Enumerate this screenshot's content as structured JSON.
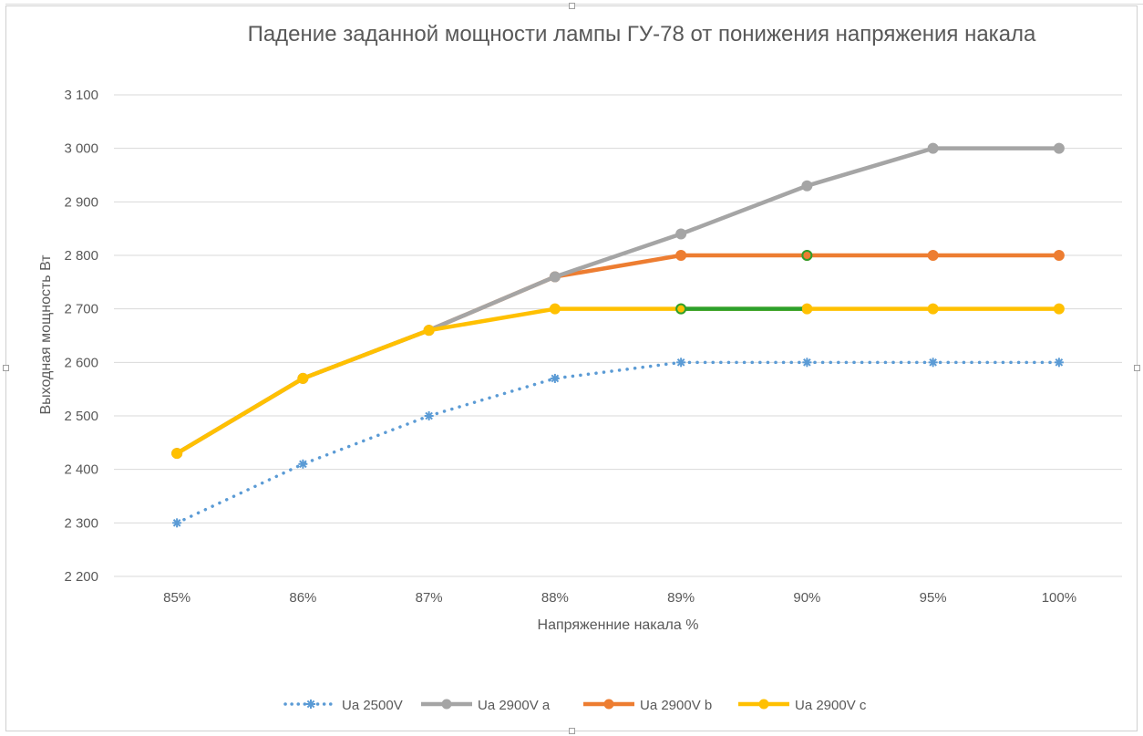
{
  "chart_data": {
    "type": "line",
    "title": "Падение заданной мощности лампы ГУ-78 от понижения напряжения накала",
    "xlabel": "Напряженние накала %",
    "ylabel": "Выходная мощность Вт",
    "categories": [
      "85%",
      "86%",
      "87%",
      "88%",
      "89%",
      "90%",
      "95%",
      "100%"
    ],
    "ylim": [
      2200,
      3100
    ],
    "yticks": [
      2200,
      2300,
      2400,
      2500,
      2600,
      2700,
      2800,
      2900,
      3000,
      3100
    ],
    "ytick_labels": [
      "2 200",
      "2 300",
      "2 400",
      "2 500",
      "2 600",
      "2 700",
      "2 800",
      "2 900",
      "3 000",
      "3 100"
    ],
    "grid": true,
    "legend_position": "bottom",
    "series": [
      {
        "name": "Ua 2500V",
        "color": "#5b9bd5",
        "style": "dotted",
        "marker": "star",
        "values": [
          2300,
          2410,
          2500,
          2570,
          2600,
          2600,
          2600,
          2600
        ]
      },
      {
        "name": "Ua 2900V a",
        "color": "#a5a5a5",
        "style": "solid",
        "marker": "circle",
        "values": [
          2430,
          2570,
          2660,
          2760,
          2840,
          2930,
          3000,
          3000
        ]
      },
      {
        "name": "Ua 2900V b",
        "color": "#ed7d31",
        "style": "solid",
        "marker": "circle",
        "values": [
          2430,
          2570,
          2660,
          2760,
          2800,
          2800,
          2800,
          2800
        ]
      },
      {
        "name": "Ua 2900V c",
        "color": "#ffc000",
        "style": "solid",
        "marker": "circle",
        "values": [
          2430,
          2570,
          2660,
          2700,
          2700,
          2700,
          2700,
          2700
        ]
      }
    ],
    "highlights": {
      "color": "#2ca02c",
      "segment": {
        "series": "Ua 2900V c",
        "from": "89%",
        "to": "90%",
        "value": 2700
      },
      "points": [
        {
          "series": "Ua 2900V c",
          "category": "89%",
          "value": 2700
        },
        {
          "series": "Ua 2900V b",
          "category": "90%",
          "value": 2800
        }
      ]
    }
  }
}
